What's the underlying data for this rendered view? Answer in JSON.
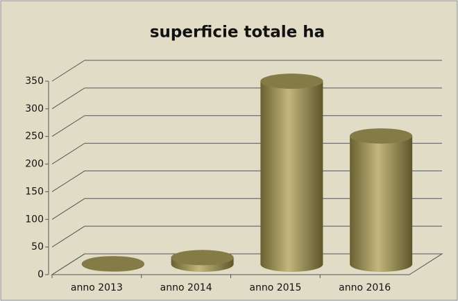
{
  "chart_data": {
    "type": "bar3d",
    "title": "superficie totale ha",
    "categories": [
      "anno 2013",
      "anno 2014",
      "anno 2015",
      "anno 2016"
    ],
    "values": [
      1,
      12,
      331,
      232
    ],
    "color": "#9a8f55",
    "ylim": [
      0,
      350
    ],
    "yticks": [
      0,
      50,
      100,
      150,
      200,
      250,
      300,
      350
    ],
    "grid": true
  }
}
